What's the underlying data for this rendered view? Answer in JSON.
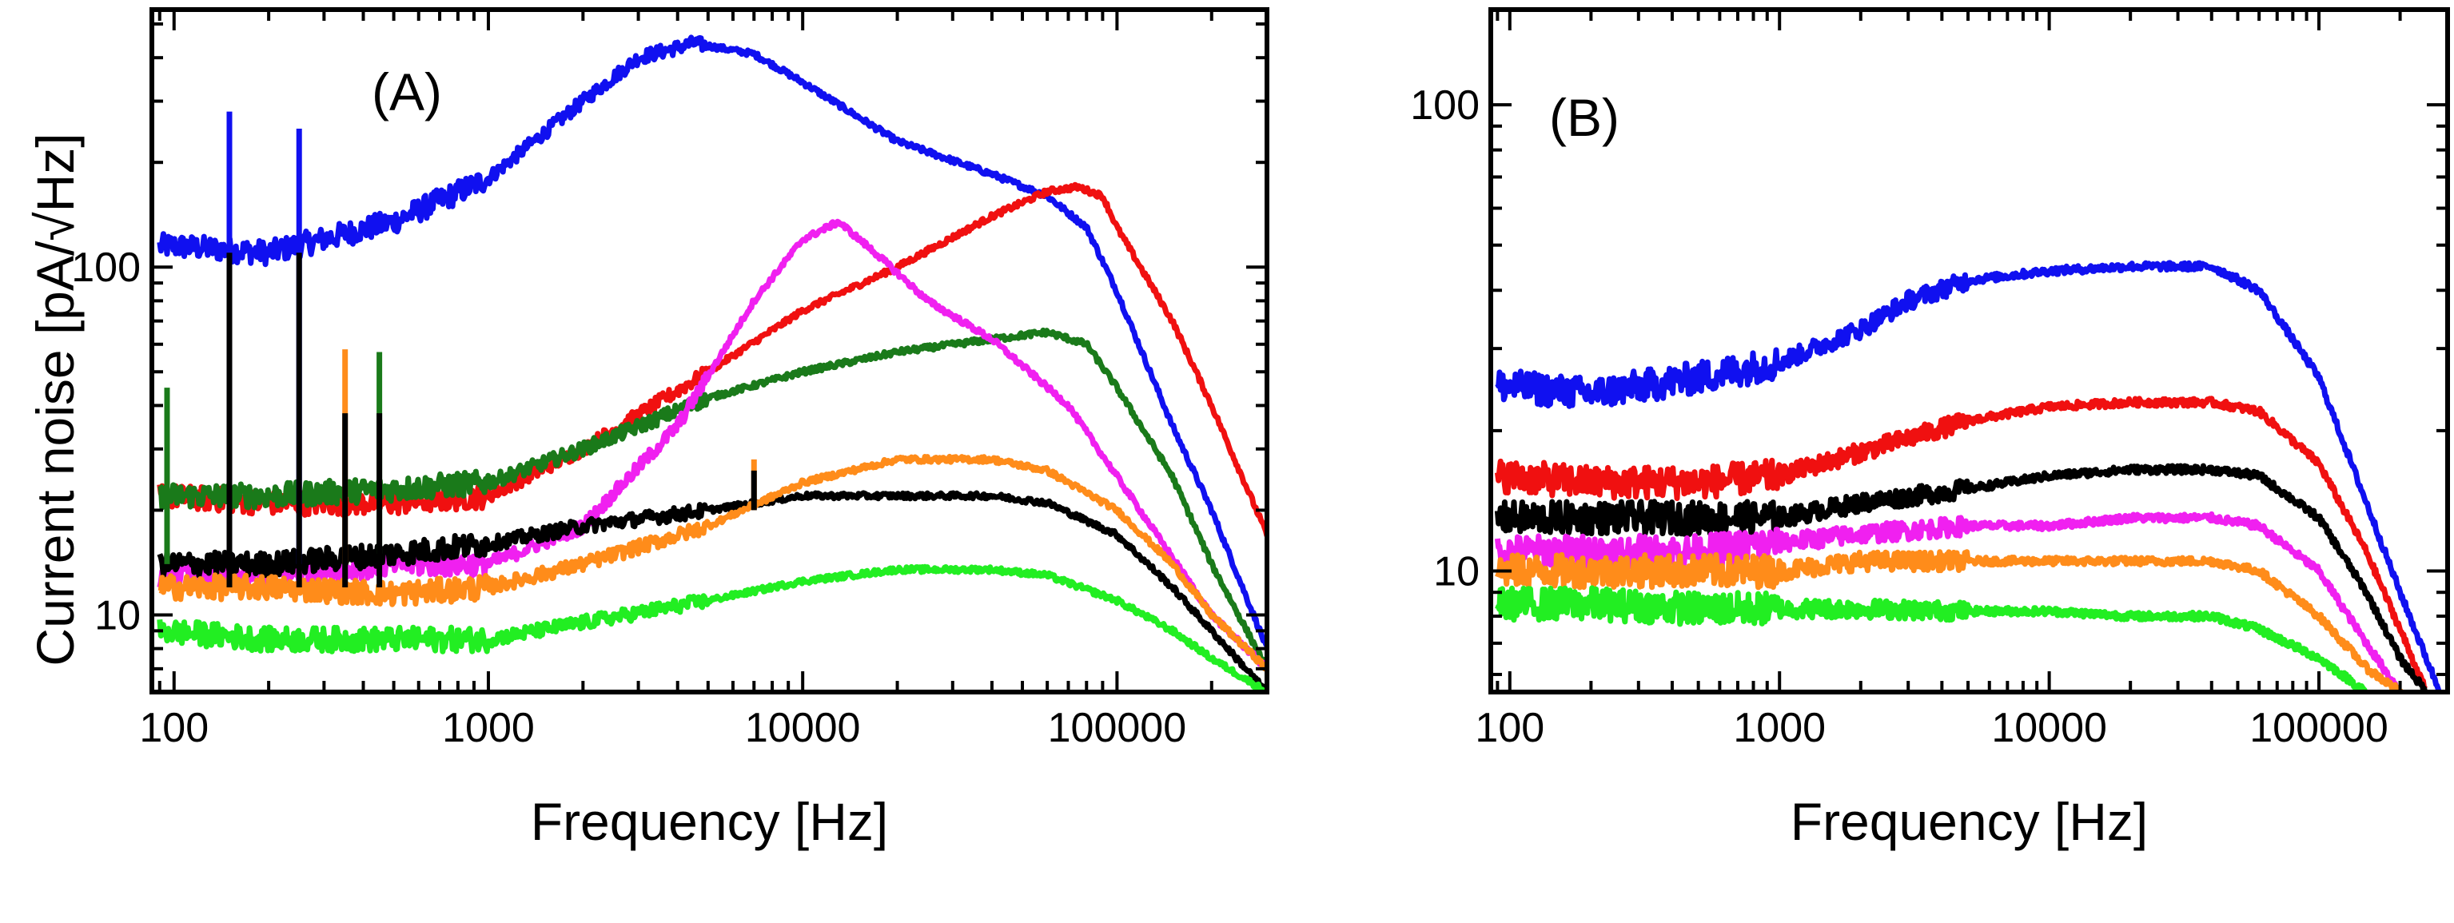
{
  "figure": {
    "ylabel_shared": "Current noise [pA/√Hz]"
  },
  "chart_data": [
    {
      "type": "line",
      "panel_label": "(A)",
      "xlabel": "Frequency [Hz]",
      "ylabel": "Current noise [pA/√Hz]",
      "xscale": "log",
      "yscale": "log",
      "xlim": [
        85,
        300000
      ],
      "ylim": [
        6,
        550
      ],
      "xticks": [
        100,
        1000,
        10000,
        100000
      ],
      "xtick_labels": [
        "100",
        "1000",
        "10000",
        "100000"
      ],
      "yticks": [
        10,
        100
      ],
      "ytick_labels": [
        "10",
        "100"
      ],
      "grid": false,
      "series": [
        {
          "name": "blue",
          "color": "#1010f0",
          "x": [
            90,
            100,
            200,
            500,
            1000,
            2000,
            3000,
            4500,
            7000,
            10000,
            20000,
            40000,
            60000,
            80000,
            100000,
            150000,
            200000,
            300000
          ],
          "y": [
            115,
            115,
            110,
            135,
            180,
            300,
            400,
            440,
            410,
            340,
            230,
            185,
            160,
            130,
            85,
            35,
            20,
            8
          ]
        },
        {
          "name": "red",
          "color": "#f01010",
          "x": [
            90,
            200,
            500,
            1000,
            2000,
            5000,
            10000,
            20000,
            40000,
            60000,
            75000,
            90000,
            100000,
            150000,
            200000,
            300000
          ],
          "y": [
            22,
            21,
            21,
            22,
            30,
            50,
            75,
            100,
            140,
            165,
            170,
            160,
            130,
            70,
            40,
            17
          ]
        },
        {
          "name": "green",
          "color": "#1a7a1a",
          "x": [
            90,
            200,
            500,
            1000,
            2000,
            5000,
            10000,
            20000,
            40000,
            60000,
            80000,
            100000,
            150000,
            200000,
            300000
          ],
          "y": [
            22,
            22,
            23,
            24,
            30,
            42,
            50,
            57,
            62,
            65,
            60,
            45,
            25,
            14,
            7
          ]
        },
        {
          "name": "magenta",
          "color": "#f020f0",
          "x": [
            90,
            200,
            500,
            1000,
            2000,
            4000,
            7000,
            10000,
            13000,
            17000,
            25000,
            40000,
            70000,
            100000,
            200000,
            300000
          ],
          "y": [
            13,
            13,
            14,
            14,
            18,
            35,
            80,
            120,
            135,
            110,
            80,
            62,
            40,
            25,
            10,
            7
          ]
        },
        {
          "name": "black",
          "color": "#000000",
          "x": [
            90,
            200,
            500,
            1000,
            2000,
            5000,
            10000,
            20000,
            40000,
            60000,
            100000,
            150000,
            200000,
            300000
          ],
          "y": [
            14,
            14,
            15,
            16,
            18,
            20,
            22,
            22,
            22,
            21,
            17,
            12,
            9,
            6
          ]
        },
        {
          "name": "orange",
          "color": "#ff8c1a",
          "x": [
            90,
            200,
            500,
            1000,
            2000,
            5000,
            10000,
            20000,
            40000,
            60000,
            100000,
            150000,
            200000,
            300000
          ],
          "y": [
            12,
            12,
            11.5,
            12,
            14,
            18,
            24,
            28,
            28,
            26,
            20,
            14,
            10,
            7
          ]
        },
        {
          "name": "light green",
          "color": "#22ee22",
          "x": [
            90,
            200,
            500,
            1000,
            2000,
            5000,
            10000,
            20000,
            40000,
            60000,
            100000,
            150000,
            200000,
            300000
          ],
          "y": [
            9,
            8.5,
            8.5,
            8.5,
            9.5,
            11,
            12.5,
            13.5,
            13.5,
            13,
            11,
            9,
            7.5,
            6
          ]
        }
      ],
      "spikes": [
        {
          "x": 95,
          "from": 14,
          "to": 45,
          "color": "#1a7a1a"
        },
        {
          "x": 150,
          "from": 14,
          "to": 280,
          "color": "#1010f0"
        },
        {
          "x": 150,
          "from": 12,
          "to": 110,
          "color": "#000000"
        },
        {
          "x": 250,
          "from": 14,
          "to": 250,
          "color": "#1010f0"
        },
        {
          "x": 250,
          "from": 12,
          "to": 110,
          "color": "#000000"
        },
        {
          "x": 350,
          "from": 14,
          "to": 58,
          "color": "#ff8c1a"
        },
        {
          "x": 350,
          "from": 12,
          "to": 38,
          "color": "#000000"
        },
        {
          "x": 450,
          "from": 15,
          "to": 57,
          "color": "#1a7a1a"
        },
        {
          "x": 450,
          "from": 12,
          "to": 38,
          "color": "#000000"
        },
        {
          "x": 7000,
          "from": 20,
          "to": 28,
          "color": "#ff8c1a"
        },
        {
          "x": 7000,
          "from": 20,
          "to": 26,
          "color": "#000000"
        }
      ]
    },
    {
      "type": "line",
      "panel_label": "(B)",
      "xlabel": "Frequency [Hz]",
      "ylabel": "",
      "xscale": "log",
      "yscale": "log",
      "xlim": [
        85,
        300000
      ],
      "ylim": [
        5.5,
        160
      ],
      "xticks": [
        100,
        1000,
        10000,
        100000
      ],
      "xtick_labels": [
        "100",
        "1000",
        "10000",
        "100000"
      ],
      "yticks": [
        10,
        100
      ],
      "ytick_labels": [
        "10",
        "100"
      ],
      "grid": false,
      "series": [
        {
          "name": "blue",
          "color": "#1010f0",
          "x": [
            90,
            200,
            500,
            1000,
            2000,
            3000,
            5000,
            10000,
            20000,
            40000,
            60000,
            100000,
            150000,
            200000,
            250000,
            300000
          ],
          "y": [
            25,
            24,
            26,
            28,
            33,
            38,
            42,
            44,
            45,
            45,
            40,
            26,
            14,
            9,
            6.5,
            5
          ]
        },
        {
          "name": "red",
          "color": "#f01010",
          "x": [
            90,
            200,
            500,
            1000,
            2000,
            5000,
            10000,
            20000,
            40000,
            60000,
            100000,
            150000,
            200000,
            250000
          ],
          "y": [
            16,
            15.5,
            15.5,
            16,
            18,
            21,
            22.5,
            23,
            23,
            22,
            17,
            11,
            7.5,
            5.5
          ]
        },
        {
          "name": "black",
          "color": "#000000",
          "x": [
            90,
            200,
            500,
            1000,
            2000,
            5000,
            10000,
            20000,
            40000,
            60000,
            100000,
            150000,
            200000,
            250000
          ],
          "y": [
            13,
            13,
            13,
            13,
            14,
            15,
            16,
            16.5,
            16.5,
            16,
            13,
            9,
            6.5,
            5.5
          ]
        },
        {
          "name": "magenta",
          "color": "#f020f0",
          "x": [
            90,
            200,
            500,
            1000,
            2000,
            5000,
            10000,
            20000,
            40000,
            60000,
            100000,
            150000,
            200000
          ],
          "y": [
            11,
            11,
            11,
            11.5,
            12,
            12.5,
            12.5,
            13,
            13,
            12.5,
            10,
            7,
            5.5
          ]
        },
        {
          "name": "orange",
          "color": "#ff8c1a",
          "x": [
            90,
            200,
            500,
            1000,
            2000,
            5000,
            10000,
            20000,
            40000,
            60000,
            100000,
            150000,
            200000
          ],
          "y": [
            10,
            10,
            10,
            10,
            10.5,
            10.5,
            10.5,
            10.5,
            10.5,
            10,
            8,
            6.2,
            5.5
          ]
        },
        {
          "name": "light green",
          "color": "#22ee22",
          "x": [
            90,
            200,
            500,
            1000,
            2000,
            5000,
            10000,
            20000,
            40000,
            60000,
            100000,
            150000
          ],
          "y": [
            8.5,
            8.5,
            8.3,
            8.3,
            8.3,
            8.2,
            8.2,
            8,
            8,
            7.5,
            6.5,
            5.5
          ]
        }
      ],
      "spikes": []
    }
  ]
}
